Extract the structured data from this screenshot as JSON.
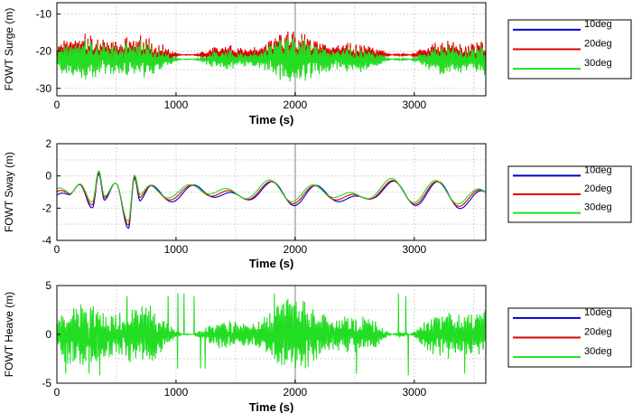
{
  "chart_data": [
    {
      "type": "line",
      "ylabel": "FOWT Surge (m)",
      "xlabel": "Time (s)",
      "xlim": [
        0,
        3600
      ],
      "ylim": [
        -32,
        -7
      ],
      "xticks": [
        0,
        1000,
        2000,
        3000
      ],
      "yticks": [
        -10,
        -20,
        -30
      ],
      "grid": true,
      "legend": "right",
      "series": [
        {
          "name": "10deg",
          "color": "#0000cc",
          "visible_fraction": "hidden",
          "mean": -22.5,
          "amplitude": 3.2,
          "sample_values": [
            -23,
            -21,
            -19,
            -24,
            -20,
            -22,
            -18,
            -25,
            -21,
            -20
          ]
        },
        {
          "name": "20deg",
          "color": "#dd0000",
          "mean": -21.8,
          "amplitude": 3.4,
          "sample_values": [
            -22,
            -20,
            -18,
            -23,
            -19,
            -21,
            -16,
            -24,
            -20,
            -19
          ]
        },
        {
          "name": "30deg",
          "color": "#22dd22",
          "mean": -22.2,
          "amplitude": 3.3,
          "sample_values": [
            -23,
            -21,
            -19,
            -24,
            -20,
            -22,
            -17,
            -25,
            -21,
            -20
          ]
        }
      ]
    },
    {
      "type": "line",
      "ylabel": "FOWT Sway (m)",
      "xlabel": "Time (s)",
      "xlim": [
        0,
        3600
      ],
      "ylim": [
        -4,
        2
      ],
      "xticks": [
        0,
        1000,
        2000,
        3000
      ],
      "yticks": [
        2,
        0,
        -2,
        -4
      ],
      "grid": true,
      "legend": "right",
      "series": [
        {
          "name": "10deg",
          "color": "#0000cc",
          "x": [
            0,
            100,
            200,
            300,
            350,
            400,
            500,
            600,
            650,
            700,
            800,
            1000,
            1200,
            1500,
            1800,
            2000,
            2200,
            2500,
            2800,
            3000,
            3200,
            3400,
            3600
          ],
          "values": [
            -1.2,
            -1.5,
            -0.4,
            -1.7,
            0.1,
            -1.8,
            -0.6,
            -2.9,
            0.1,
            -1.6,
            -0.9,
            -1.3,
            -0.8,
            -1.4,
            -0.7,
            -1.5,
            -0.9,
            -1.6,
            -0.6,
            -1.5,
            -0.7,
            -1.7,
            -1.2
          ]
        },
        {
          "name": "20deg",
          "color": "#dd0000",
          "x": [
            0,
            100,
            200,
            300,
            350,
            400,
            500,
            600,
            650,
            700,
            800,
            1000,
            1200,
            1500,
            1800,
            2000,
            2200,
            2500,
            2800,
            3000,
            3200,
            3400,
            3600
          ],
          "values": [
            -1.1,
            -1.4,
            -0.3,
            -1.6,
            0.1,
            -1.7,
            -0.5,
            -2.7,
            0.1,
            -1.5,
            -0.9,
            -1.2,
            -0.8,
            -1.3,
            -0.7,
            -1.4,
            -0.9,
            -1.5,
            -0.6,
            -1.4,
            -0.7,
            -1.6,
            -1.1
          ]
        },
        {
          "name": "30deg",
          "color": "#22dd22",
          "x": [
            0,
            100,
            200,
            300,
            350,
            400,
            500,
            600,
            650,
            700,
            800,
            1000,
            1200,
            1500,
            1800,
            2000,
            2200,
            2500,
            2800,
            3000,
            3200,
            3400,
            3600
          ],
          "values": [
            -1.0,
            -1.3,
            -0.2,
            -1.5,
            0.1,
            -1.6,
            -0.4,
            -2.5,
            0.1,
            -1.4,
            -0.8,
            -1.1,
            -0.7,
            -1.2,
            -0.6,
            -1.3,
            -0.8,
            -1.4,
            -0.5,
            -1.3,
            -0.6,
            -1.5,
            -1.0
          ]
        }
      ]
    },
    {
      "type": "line",
      "ylabel": "FOWT Heave (m)",
      "xlabel": "Time (s)",
      "xlim": [
        0,
        3600
      ],
      "ylim": [
        -5,
        5
      ],
      "xticks": [
        0,
        1000,
        2000,
        3000
      ],
      "yticks": [
        5,
        0,
        -5
      ],
      "grid": true,
      "legend": "right",
      "series": [
        {
          "name": "10deg",
          "color": "#0000cc",
          "visible_fraction": "hidden",
          "mean": 0,
          "amplitude": 2.0
        },
        {
          "name": "20deg",
          "color": "#dd0000",
          "visible_fraction": "hidden",
          "mean": 0,
          "amplitude": 2.0
        },
        {
          "name": "30deg",
          "color": "#22dd22",
          "mean": 0,
          "amplitude": 2.0,
          "peak_values": [
            3.8,
            -4.0,
            4.2,
            -3.5,
            3.9,
            -4.2
          ]
        }
      ]
    }
  ]
}
